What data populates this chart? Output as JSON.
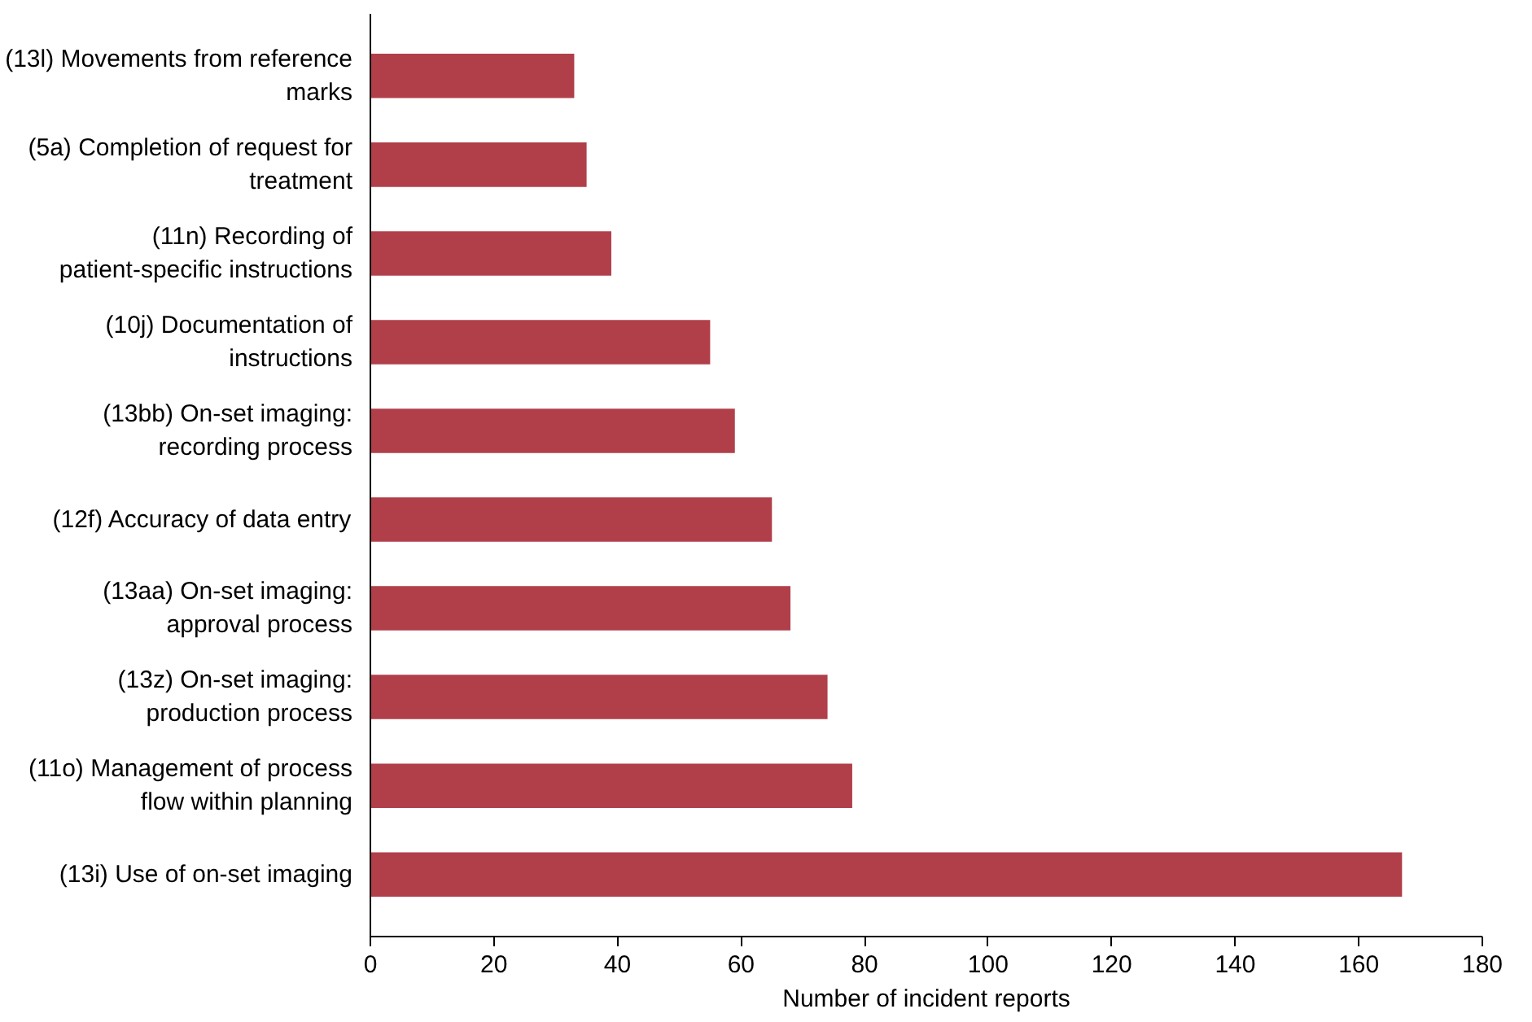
{
  "chart_data": {
    "type": "bar",
    "orientation": "horizontal",
    "xlabel": "Number of incident reports",
    "categories": [
      "(13l) Movements from reference marks",
      "(5a) Completion of request for treatment",
      "(11n) Recording of patient-specific instructions",
      "(10j) Documentation of instructions",
      "(13bb) On-set imaging: recording process",
      "(12f) Accuracy of data entry",
      "(13aa) On-set imaging: approval process",
      "(13z) On-set imaging: production process",
      "(11o) Management of process flow within planning",
      "(13i) Use of on-set imaging"
    ],
    "values": [
      33,
      35,
      39,
      55,
      59,
      65,
      68,
      74,
      78,
      167
    ],
    "color": "#b03f4a",
    "xlim": [
      0,
      180
    ],
    "xticks": [
      0,
      20,
      40,
      60,
      80,
      100,
      120,
      140,
      160,
      180
    ],
    "grid": false
  }
}
